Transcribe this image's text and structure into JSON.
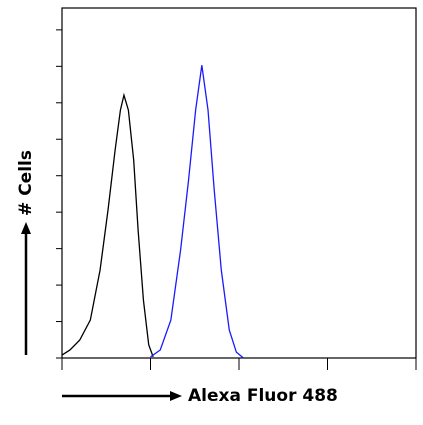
{
  "chart_data": {
    "type": "line",
    "ylabel": "# Cells",
    "xlabel": "Alexa Fluor 488",
    "xlim": [
      0,
      4
    ],
    "xticks": [
      0,
      1,
      2,
      3,
      4
    ],
    "xscale": "log-decades",
    "ylim": [
      0,
      96
    ],
    "yticks": [
      0,
      10,
      20,
      30,
      40,
      50,
      60,
      70,
      80,
      90
    ],
    "series": [
      {
        "color": "#000000",
        "x": [
          0,
          0.09,
          0.2,
          0.32,
          0.43,
          0.52,
          0.6,
          0.66,
          0.7,
          0.75,
          0.81,
          0.86,
          0.92,
          0.98,
          1.03
        ],
        "values": [
          0.8,
          2.2,
          4.9,
          10.4,
          24.1,
          40.6,
          57.0,
          68.0,
          72.1,
          68.0,
          54.3,
          35.1,
          15.9,
          3.6,
          0.3
        ]
      },
      {
        "color": "#1a1aff",
        "x": [
          1.0,
          1.11,
          1.23,
          1.34,
          1.43,
          1.51,
          1.58,
          1.65,
          1.72,
          1.8,
          1.89,
          1.97,
          2.05
        ],
        "values": [
          0.3,
          2.2,
          10.4,
          29.6,
          48.8,
          68.0,
          80.3,
          68.0,
          46.1,
          24.1,
          7.7,
          1.6,
          0
        ]
      }
    ]
  }
}
